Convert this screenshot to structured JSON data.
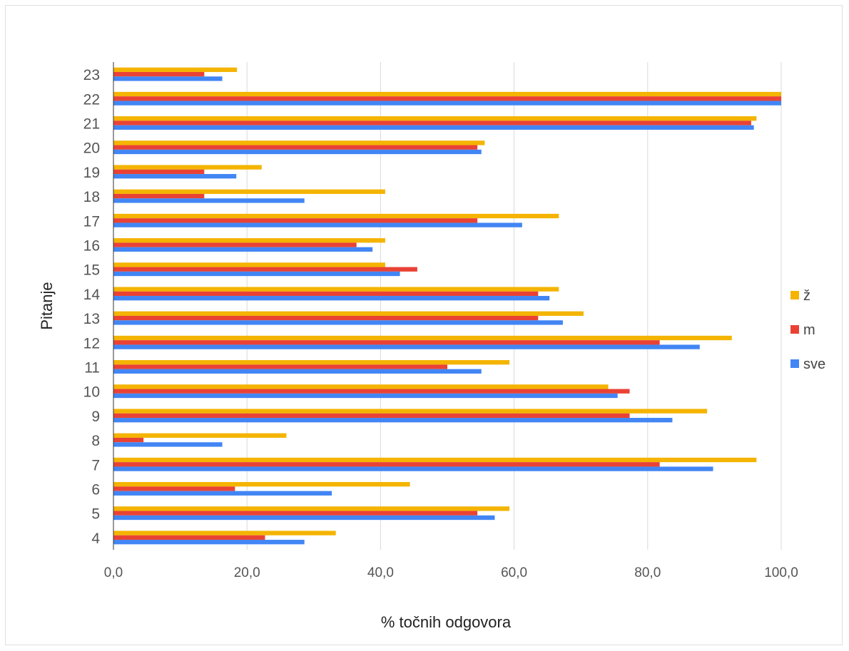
{
  "chart_data": {
    "type": "bar",
    "orientation": "horizontal",
    "categories": [
      "23",
      "22",
      "21",
      "20",
      "19",
      "18",
      "17",
      "16",
      "15",
      "14",
      "13",
      "12",
      "11",
      "10",
      "9",
      "8",
      "7",
      "6",
      "5",
      "4"
    ],
    "series": [
      {
        "name": "ž",
        "color": "#f4b400",
        "values": [
          18.5,
          100.0,
          96.3,
          55.6,
          22.2,
          40.7,
          66.7,
          40.7,
          40.7,
          66.7,
          70.4,
          92.6,
          59.3,
          74.1,
          88.9,
          25.9,
          96.3,
          44.4,
          59.3,
          33.3
        ]
      },
      {
        "name": "m",
        "color": "#e94235",
        "values": [
          13.6,
          100.0,
          95.5,
          54.5,
          13.6,
          13.6,
          54.5,
          36.4,
          45.5,
          63.6,
          63.6,
          81.8,
          50.0,
          77.3,
          77.3,
          4.5,
          81.8,
          18.2,
          54.5,
          22.7
        ]
      },
      {
        "name": "sve",
        "color": "#4285f4",
        "values": [
          16.3,
          100.0,
          95.9,
          55.1,
          18.4,
          28.6,
          61.2,
          38.8,
          42.9,
          65.3,
          67.3,
          87.8,
          55.1,
          75.5,
          83.7,
          16.3,
          89.8,
          32.7,
          57.1,
          28.6
        ]
      }
    ],
    "xlabel": "% točnih odgovora",
    "ylabel": "Pitanje",
    "xlim": [
      0,
      100
    ],
    "xticks": [
      "0,0",
      "20,0",
      "40,0",
      "60,0",
      "80,0",
      "100,0"
    ],
    "grid": true,
    "legend_position": "right"
  }
}
